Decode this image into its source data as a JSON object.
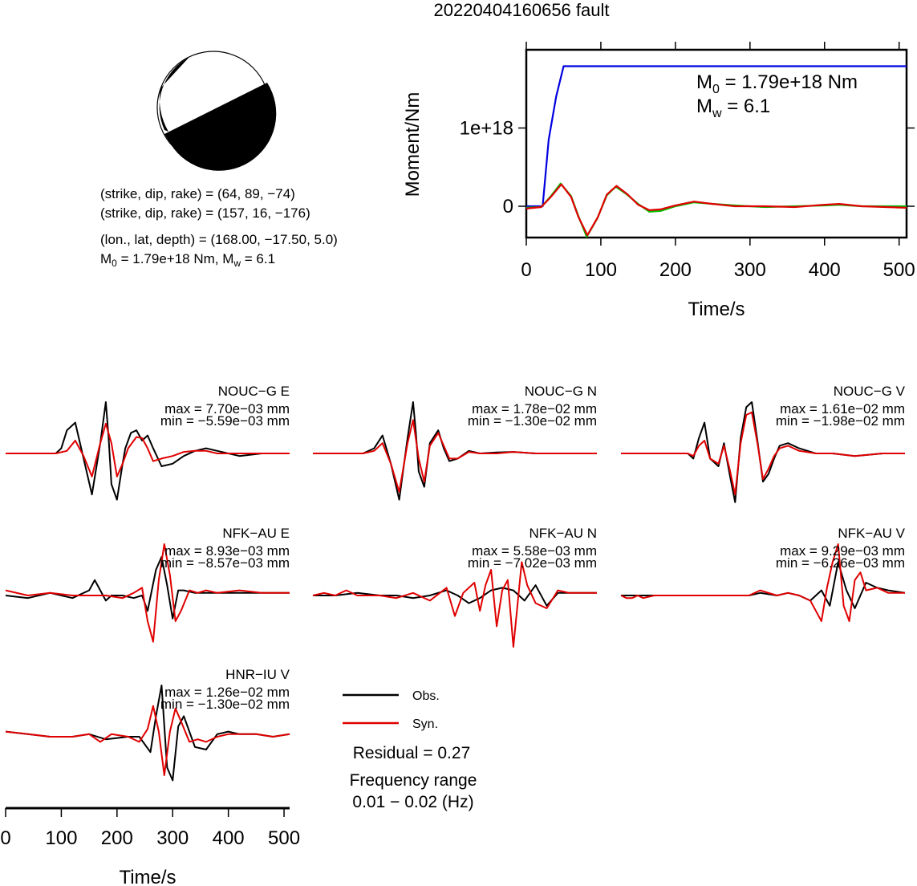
{
  "title": "20220404160656 fault",
  "mechanism": {
    "line1": "(strike, dip, rake) = (64, 89, −74)",
    "line2": "(strike, dip, rake) = (157, 16, −176)",
    "line3": "(lon., lat, depth) = (168.00, −17.50, 5.0)",
    "m0_prefix": "M",
    "m0_sub": "0",
    "m0_mid": " = 1.79e+18 Nm, M",
    "mw_sub": "w",
    "mw_suffix": " = 6.1"
  },
  "legend": {
    "obs": "Obs.",
    "syn": "Syn.",
    "residual": "Residual = 0.27",
    "freq_title": "Frequency range",
    "freq_value": "0.01 − 0.02 (Hz)"
  },
  "colors": {
    "obs": "#000000",
    "syn": "#e00000",
    "moment": "#0000e0",
    "stf_obs": "#00c000",
    "stf_syn": "#e00000"
  },
  "chart_data": [
    {
      "type": "line",
      "name": "moment-rate",
      "ylabel": "Moment/Nm",
      "xlabel": "Time/s",
      "xlim": [
        0,
        510
      ],
      "ylim": [
        -400000000000000000,
        2000000000000000000
      ],
      "xticks": [
        "0",
        "100",
        "200",
        "300",
        "400",
        "500"
      ],
      "xtick_values": [
        0,
        100,
        200,
        300,
        400,
        500
      ],
      "yticks": [
        "0",
        "1e+18"
      ],
      "ytick_values": [
        0,
        1000000000000000000
      ],
      "annotation": {
        "m_prefix": "M",
        "m_sub": "0",
        "m_value": " = 1.79e+18 Nm",
        "w_prefix": "M",
        "w_sub": "w",
        "w_value": " = 6.1"
      },
      "series": [
        {
          "role": "cumulative",
          "x": [
            0,
            22,
            30,
            40,
            50,
            510
          ],
          "y": [
            0,
            0,
            8.5e+17,
            1.4e+18,
            1.79e+18,
            1.79e+18
          ]
        },
        {
          "role": "stf-green",
          "x": [
            0,
            20,
            33,
            46,
            60,
            70,
            81,
            95,
            108,
            120,
            135,
            150,
            165,
            180,
            200,
            225,
            250,
            280,
            320,
            360,
            400,
            420,
            450,
            510
          ],
          "y": [
            -2e+16,
            -1e+16,
            1.3e+17,
            2.9e+17,
            1.3e+17,
            -1.3e+17,
            -3.9e+17,
            -1.6e+17,
            1.4e+17,
            2.5e+17,
            1.5e+17,
            3e+16,
            -7e+16,
            -6e+16,
            0,
            5e+16,
            3e+16,
            1e+16,
            -1e+16,
            0,
            1e+16,
            2e+16,
            0,
            0
          ]
        },
        {
          "role": "stf-red",
          "x": [
            0,
            20,
            33,
            47,
            60,
            70,
            82,
            96,
            108,
            121,
            136,
            150,
            165,
            180,
            200,
            225,
            250,
            280,
            320,
            360,
            400,
            420,
            450,
            510
          ],
          "y": [
            -3e+16,
            -1e+16,
            1.2e+17,
            2.8e+17,
            1.2e+17,
            -1.4e+17,
            -3.7e+17,
            -1.4e+17,
            1.5e+17,
            2.6e+17,
            1.5e+17,
            2e+16,
            -5e+16,
            -4e+16,
            1e+16,
            6e+16,
            3e+16,
            0,
            0,
            -1e+16,
            2e+16,
            3e+16,
            0,
            -2e+16
          ]
        }
      ]
    },
    {
      "type": "line",
      "name": "waveforms",
      "xlabel": "Time/s",
      "xlim": [
        0,
        510
      ],
      "xticks": [
        "0",
        "100",
        "200",
        "300",
        "400",
        "500"
      ],
      "xtick_values": [
        0,
        100,
        200,
        300,
        400,
        500
      ],
      "panels": [
        {
          "label": "NOUC−G E",
          "max": "max = 7.70e−03 mm",
          "min": "min = −5.59e−03 mm"
        },
        {
          "label": "NOUC−G N",
          "max": "max = 1.78e−02 mm",
          "min": "min = −1.30e−02 mm"
        },
        {
          "label": "NOUC−G V",
          "max": "max = 1.61e−02 mm",
          "min": "min = −1.98e−02 mm"
        },
        {
          "label": "NFK−AU E",
          "max": "max = 8.93e−03 mm",
          "min": "min = −8.57e−03 mm"
        },
        {
          "label": "NFK−AU N",
          "max": "max = 5.58e−03 mm",
          "min": "min = −7.02e−03 mm"
        },
        {
          "label": "NFK−AU V",
          "max": "max = 9.29e−03 mm",
          "min": "min = −6.26e−03 mm"
        },
        {
          "label": "HNR−IU V",
          "max": "max = 1.26e−02 mm",
          "min": "min = −1.30e−02 mm"
        }
      ],
      "traces": [
        {
          "obs": {
            "x": [
              0,
              70,
              90,
              100,
              110,
              125,
              140,
              155,
              170,
              180,
              185,
              190,
              200,
              210,
              215,
              225,
              235,
              245,
              255,
              265,
              280,
              300,
              320,
              340,
              360,
              380,
              420,
              460,
              510
            ],
            "y": [
              0,
              0,
              0,
              0.1,
              0.45,
              0.6,
              -0.1,
              -0.8,
              0.2,
              1.0,
              0.3,
              -0.6,
              -0.9,
              -0.2,
              0.1,
              0.4,
              0.45,
              0.25,
              0.35,
              0.1,
              -0.25,
              -0.2,
              -0.05,
              0.05,
              0.1,
              0.05,
              -0.05,
              0,
              0
            ]
          },
          "syn": {
            "x": [
              0,
              70,
              90,
              110,
              125,
              140,
              155,
              170,
              180,
              190,
              200,
              210,
              220,
              235,
              245,
              255,
              265,
              280,
              300,
              320,
              340,
              360,
              380,
              420,
              460,
              510
            ],
            "y": [
              0,
              0,
              0,
              0.05,
              0.25,
              -0.05,
              -0.45,
              0.2,
              0.58,
              0.2,
              -0.45,
              -0.2,
              0.1,
              0.32,
              0.3,
              0.1,
              -0.15,
              -0.1,
              -0.05,
              0.03,
              0.05,
              0.05,
              0,
              0,
              0,
              0
            ]
          }
        },
        {
          "obs": {
            "x": [
              0,
              70,
              90,
              110,
              125,
              140,
              155,
              170,
              180,
              185,
              190,
              200,
              210,
              225,
              235,
              245,
              260,
              280,
              300,
              330,
              360,
              400,
              450,
              510
            ],
            "y": [
              0,
              0,
              0,
              0.1,
              0.35,
              -0.2,
              -0.9,
              0.3,
              1.0,
              0.4,
              -0.35,
              -0.65,
              0.2,
              0.45,
              0.1,
              -0.15,
              -0.1,
              0.05,
              0.0,
              0.02,
              0.03,
              0,
              0,
              0
            ]
          },
          "syn": {
            "x": [
              0,
              70,
              90,
              110,
              125,
              140,
              155,
              170,
              180,
              190,
              200,
              210,
              225,
              235,
              245,
              260,
              280,
              300,
              330,
              360,
              400,
              450,
              510
            ],
            "y": [
              0,
              0,
              0,
              0.05,
              0.2,
              -0.2,
              -0.75,
              0.2,
              0.65,
              -0.1,
              -0.55,
              0.15,
              0.4,
              0.15,
              -0.1,
              -0.1,
              0.03,
              0,
              0,
              0.03,
              0,
              0,
              0
            ]
          }
        },
        {
          "obs": {
            "x": [
              0,
              100,
              120,
              130,
              140,
              150,
              160,
              175,
              185,
              195,
              205,
              215,
              225,
              235,
              245,
              255,
              265,
              275,
              285,
              300,
              320,
              350,
              380,
              420,
              470,
              510
            ],
            "y": [
              0,
              0,
              0,
              -0.1,
              0.3,
              0.6,
              -0.1,
              -0.25,
              0.2,
              -0.4,
              -0.95,
              0.3,
              0.9,
              1.0,
              0.25,
              -0.55,
              -0.4,
              -0.1,
              0.15,
              0.2,
              0.1,
              0,
              0,
              -0.05,
              0,
              0
            ]
          },
          "syn": {
            "x": [
              0,
              100,
              120,
              130,
              140,
              150,
              160,
              175,
              185,
              195,
              205,
              215,
              225,
              235,
              245,
              255,
              265,
              275,
              285,
              300,
              320,
              350,
              380,
              420,
              470,
              510
            ],
            "y": [
              0,
              0,
              0,
              -0.05,
              0.15,
              0.25,
              -0.1,
              -0.2,
              0.15,
              -0.3,
              -0.8,
              0.2,
              0.75,
              0.8,
              0.2,
              -0.5,
              -0.3,
              -0.05,
              0.1,
              0.15,
              0.05,
              0,
              0,
              -0.05,
              0,
              0
            ]
          }
        },
        {
          "obs": {
            "x": [
              0,
              40,
              80,
              120,
              150,
              160,
              170,
              180,
              190,
              210,
              230,
              245,
              255,
              270,
              280,
              290,
              300,
              310,
              320,
              340,
              360,
              380,
              420,
              460,
              510
            ],
            "y": [
              0,
              -0.05,
              0.05,
              -0.05,
              0.1,
              0.3,
              0.1,
              -0.1,
              0,
              0,
              -0.05,
              0,
              -0.3,
              0.5,
              0.75,
              0.2,
              -0.45,
              0.1,
              0.1,
              0.05,
              0.05,
              0.05,
              0.05,
              0.05,
              0.05
            ]
          },
          "syn": {
            "x": [
              0,
              40,
              80,
              120,
              150,
              180,
              210,
              230,
              245,
              255,
              265,
              275,
              285,
              295,
              305,
              315,
              330,
              345,
              360,
              380,
              420,
              460,
              510
            ],
            "y": [
              0.1,
              0,
              0.05,
              0,
              0,
              0,
              -0.05,
              0.05,
              0.15,
              -0.5,
              -0.9,
              0.3,
              1.0,
              0.4,
              -0.5,
              -0.3,
              0.1,
              0.05,
              0.1,
              0.05,
              0.1,
              0.05,
              0.05
            ]
          }
        },
        {
          "obs": {
            "x": [
              0,
              40,
              80,
              120,
              150,
              180,
              210,
              240,
              260,
              280,
              300,
              320,
              340,
              360,
              380,
              400,
              420,
              440,
              460,
              480,
              510
            ],
            "y": [
              0,
              0,
              0.05,
              0,
              0,
              -0.05,
              0,
              0.1,
              0,
              -0.15,
              -0.05,
              0.1,
              0.15,
              0.1,
              -0.1,
              0.2,
              -0.2,
              0.05,
              0.05,
              0.05,
              0.05
            ]
          },
          "syn": {
            "x": [
              0,
              20,
              40,
              60,
              80,
              120,
              150,
              180,
              210,
              240,
              255,
              270,
              290,
              300,
              310,
              320,
              330,
              340,
              350,
              360,
              375,
              385,
              400,
              420,
              440,
              460,
              480,
              510
            ],
            "y": [
              0,
              0.05,
              0,
              0.1,
              0,
              0,
              -0.05,
              0.05,
              -0.1,
              0.15,
              -0.4,
              0.05,
              0.25,
              -0.3,
              0.2,
              0.5,
              -0.6,
              0.1,
              0.3,
              -1.0,
              0.65,
              0.2,
              -0.15,
              -0.25,
              0.1,
              0.05,
              0.05,
              0.05
            ]
          }
        },
        {
          "obs": {
            "x": [
              0,
              60,
              100,
              150,
              200,
              230,
              250,
              280,
              300,
              320,
              340,
              360,
              375,
              390,
              405,
              420,
              440,
              460,
              480,
              510
            ],
            "y": [
              0,
              0,
              0,
              0,
              0,
              0,
              0.05,
              0,
              0.05,
              0,
              -0.1,
              0.1,
              -0.2,
              0.65,
              0.1,
              -0.25,
              0.25,
              0.15,
              0.1,
              0.05
            ]
          },
          "syn": {
            "x": [
              0,
              10,
              20,
              30,
              40,
              60,
              100,
              150,
              200,
              230,
              250,
              280,
              300,
              320,
              340,
              360,
              370,
              380,
              390,
              400,
              410,
              420,
              430,
              440,
              460,
              480,
              510
            ],
            "y": [
              0,
              -0.05,
              -0.05,
              0,
              -0.05,
              0,
              0,
              0,
              0,
              0,
              0.1,
              0,
              0.05,
              0,
              -0.1,
              -0.5,
              0.15,
              0.65,
              1.0,
              -0.2,
              -0.5,
              0.3,
              0.45,
              0.1,
              0.15,
              0.05,
              0.05
            ]
          }
        },
        {
          "obs": {
            "x": [
              0,
              40,
              80,
              120,
              150,
              180,
              220,
              240,
              260,
              270,
              280,
              290,
              300,
              310,
              320,
              340,
              360,
              380,
              400,
              420,
              450,
              480,
              510
            ],
            "y": [
              0.1,
              0.05,
              0,
              0,
              0.05,
              -0.05,
              0,
              0,
              -0.3,
              0.4,
              1.0,
              -0.6,
              -0.85,
              0.2,
              0.4,
              -0.2,
              -0.25,
              0.05,
              0.1,
              0.05,
              0.05,
              0,
              0.05
            ]
          },
          "syn": {
            "x": [
              0,
              40,
              80,
              120,
              150,
              170,
              190,
              220,
              240,
              255,
              265,
              275,
              285,
              295,
              305,
              315,
              330,
              345,
              360,
              380,
              400,
              420,
              450,
              480,
              510
            ],
            "y": [
              0.1,
              0.05,
              0,
              0,
              0.05,
              -0.1,
              0.05,
              0,
              -0.1,
              0.15,
              0.6,
              0.1,
              -0.75,
              0.1,
              0.55,
              0.3,
              -0.1,
              -0.05,
              -0.1,
              0,
              0.05,
              0.05,
              0.05,
              0,
              0.05
            ]
          }
        }
      ]
    }
  ]
}
